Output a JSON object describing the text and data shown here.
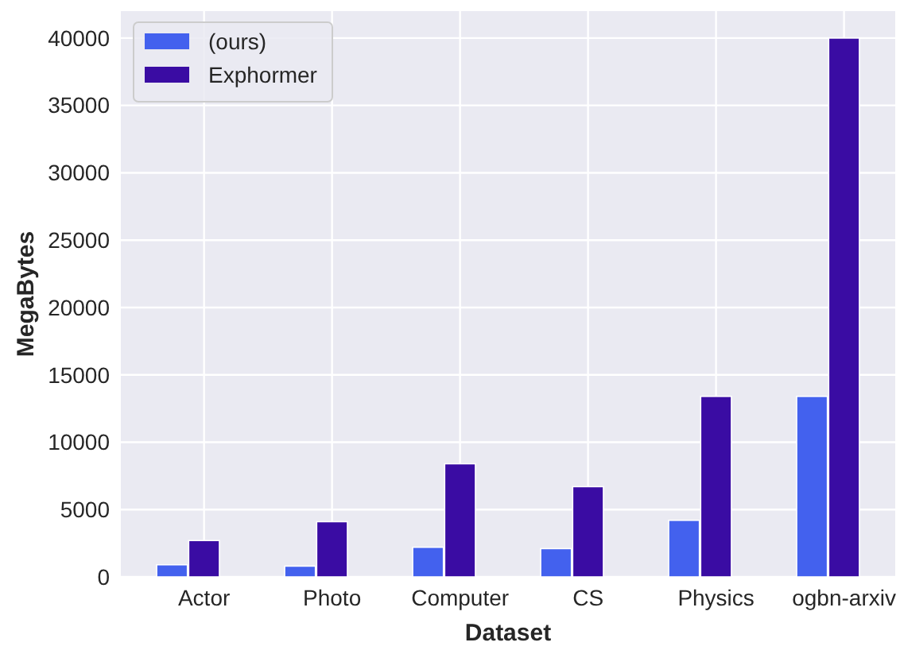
{
  "chart_data": {
    "type": "bar",
    "xlabel": "Dataset",
    "ylabel": "MegaBytes",
    "categories": [
      "Actor",
      "Photo",
      "Computer",
      "CS",
      "Physics",
      "ogbn-arxiv"
    ],
    "series": [
      {
        "name": "(ours)",
        "color": "#4361ee",
        "values": [
          900,
          800,
          2200,
          2100,
          4200,
          13400
        ]
      },
      {
        "name": "Exphormer",
        "color": "#3a0ca3",
        "values": [
          2700,
          4100,
          8400,
          6700,
          13400,
          40000
        ]
      }
    ],
    "ylim": [
      0,
      42000
    ],
    "yticks": [
      0,
      5000,
      10000,
      15000,
      20000,
      25000,
      30000,
      35000,
      40000
    ],
    "grid": true,
    "legend": "top left"
  }
}
